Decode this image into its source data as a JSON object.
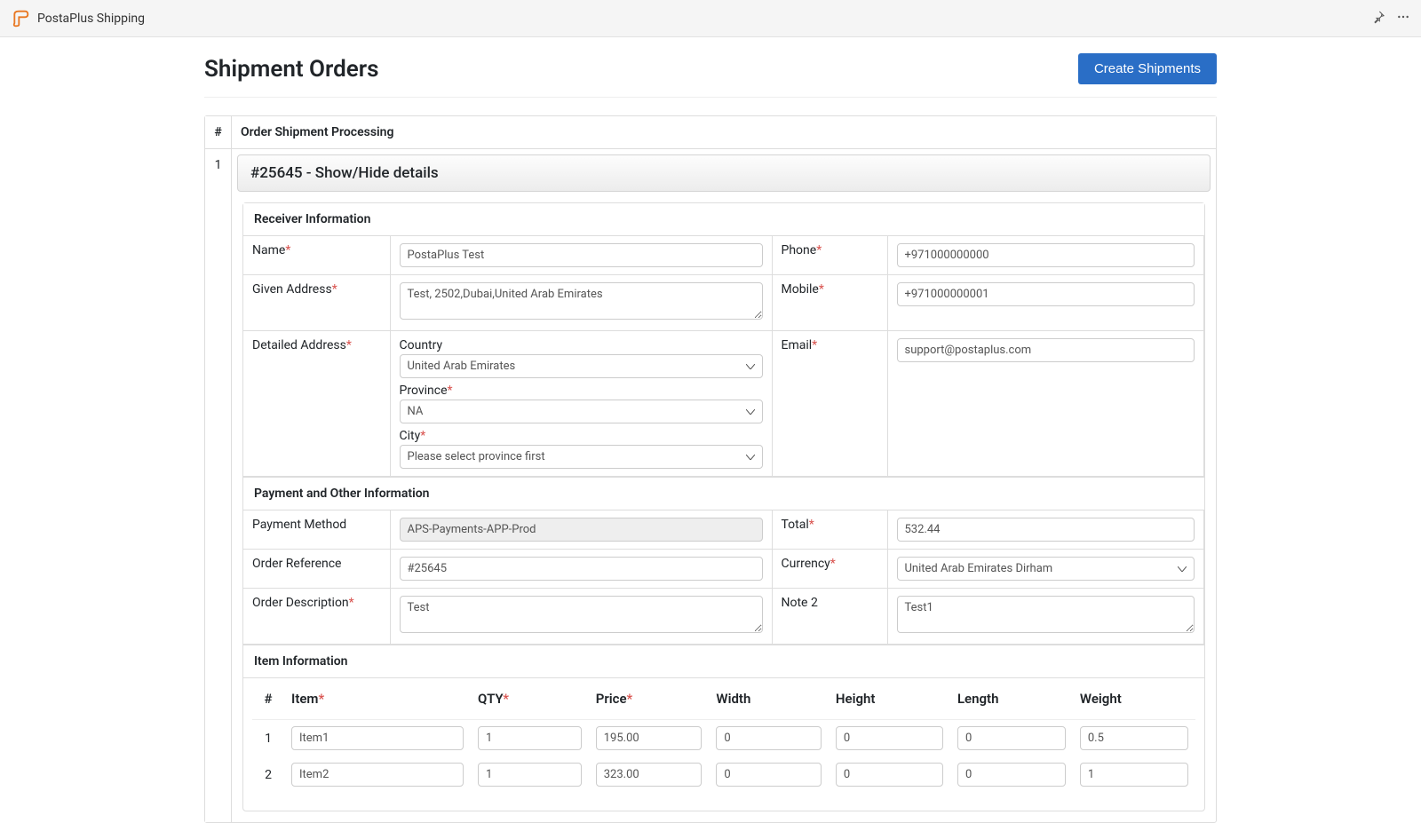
{
  "app": {
    "title": "PostaPlus Shipping"
  },
  "page": {
    "title": "Shipment Orders",
    "create_button": "Create Shipments",
    "col_num": "#",
    "col_title": "Order Shipment Processing",
    "row_num": "1"
  },
  "order": {
    "header": "#25645 - Show/Hide details",
    "sections": {
      "receiver": "Receiver Information",
      "payment": "Payment and Other Information",
      "items": "Item Information"
    },
    "labels": {
      "name": "Name",
      "given_address": "Given Address",
      "detailed_address": "Detailed Address",
      "country": "Country",
      "province": "Province",
      "city": "City",
      "phone": "Phone",
      "mobile": "Mobile",
      "email": "Email",
      "payment_method": "Payment Method",
      "total": "Total",
      "order_reference": "Order Reference",
      "currency": "Currency",
      "order_description": "Order Description",
      "note2": "Note 2"
    },
    "values": {
      "name": "PostaPlus Test",
      "given_address": "Test, 2502,Dubai,United Arab Emirates",
      "country": "United Arab Emirates",
      "province": "NA",
      "city": "Please select province first",
      "phone": "+971000000000",
      "mobile": "+971000000001",
      "email": "support@postaplus.com",
      "payment_method": "APS-Payments-APP-Prod",
      "total": "532.44",
      "order_reference": "#25645",
      "currency": "United Arab Emirates Dirham",
      "order_description": "Test",
      "note2": "Test1"
    },
    "items_cols": {
      "num": "#",
      "item": "Item",
      "qty": "QTY",
      "price": "Price",
      "width": "Width",
      "height": "Height",
      "length": "Length",
      "weight": "Weight"
    },
    "items": [
      {
        "num": "1",
        "item": "Item1",
        "qty": "1",
        "price": "195.00",
        "width": "0",
        "height": "0",
        "length": "0",
        "weight": "0.5"
      },
      {
        "num": "2",
        "item": "Item2",
        "qty": "1",
        "price": "323.00",
        "width": "0",
        "height": "0",
        "length": "0",
        "weight": "1"
      }
    ]
  }
}
